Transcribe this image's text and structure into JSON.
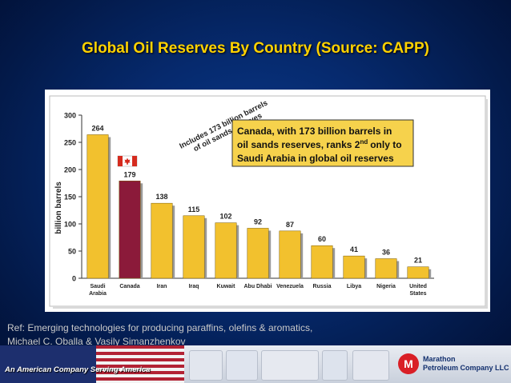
{
  "slide": {
    "title": "Global Oil Reserves By Country (Source: CAPP)",
    "reference_line1": "Ref: Emerging technologies for producing paraffins, olefins & aromatics,",
    "reference_line2": "Michael C. Oballa & Vasily Simanzhenkov",
    "footer_tagline": "An American Company Serving America",
    "footer_company_line1": "Marathon",
    "footer_company_line2": "Petroleum Company LLC",
    "footer_logo_letter": "M"
  },
  "colors": {
    "title": "#ffd200",
    "bar_default": "#f2c12e",
    "bar_highlight": "#8b1a3a",
    "callout_fill": "#f6d24c"
  },
  "chart_data": {
    "type": "bar",
    "categories": [
      "Saudi Arabia",
      "Canada",
      "Iran",
      "Iraq",
      "Kuwait",
      "Abu Dhabi",
      "Venezuela",
      "Russia",
      "Libya",
      "Nigeria",
      "United States"
    ],
    "tick_labels": [
      [
        "Saudi",
        "Arabia"
      ],
      [
        "Canada"
      ],
      [
        "Iran"
      ],
      [
        "Iraq"
      ],
      [
        "Kuwait"
      ],
      [
        "Abu Dhabi"
      ],
      [
        "Venezuela"
      ],
      [
        "Russia"
      ],
      [
        "Libya"
      ],
      [
        "Nigeria"
      ],
      [
        "United",
        "States"
      ]
    ],
    "values": [
      264,
      179,
      138,
      115,
      102,
      92,
      87,
      60,
      41,
      36,
      21
    ],
    "highlight_index": 1,
    "ylabel": "billion barrels",
    "ylim": [
      0,
      300
    ],
    "yticks": [
      0,
      50,
      100,
      150,
      200,
      250,
      300
    ],
    "grid": false,
    "legend": "none",
    "annotation_rotated": [
      "Includes 173 billion barrels",
      "of oil sands reserves"
    ],
    "callout_lines": [
      "Canada, with 173 billion barrels in",
      "oil sands reserves, ranks 2",
      "only to",
      "Saudi Arabia in global oil reserves"
    ],
    "callout_superscript": "nd"
  }
}
